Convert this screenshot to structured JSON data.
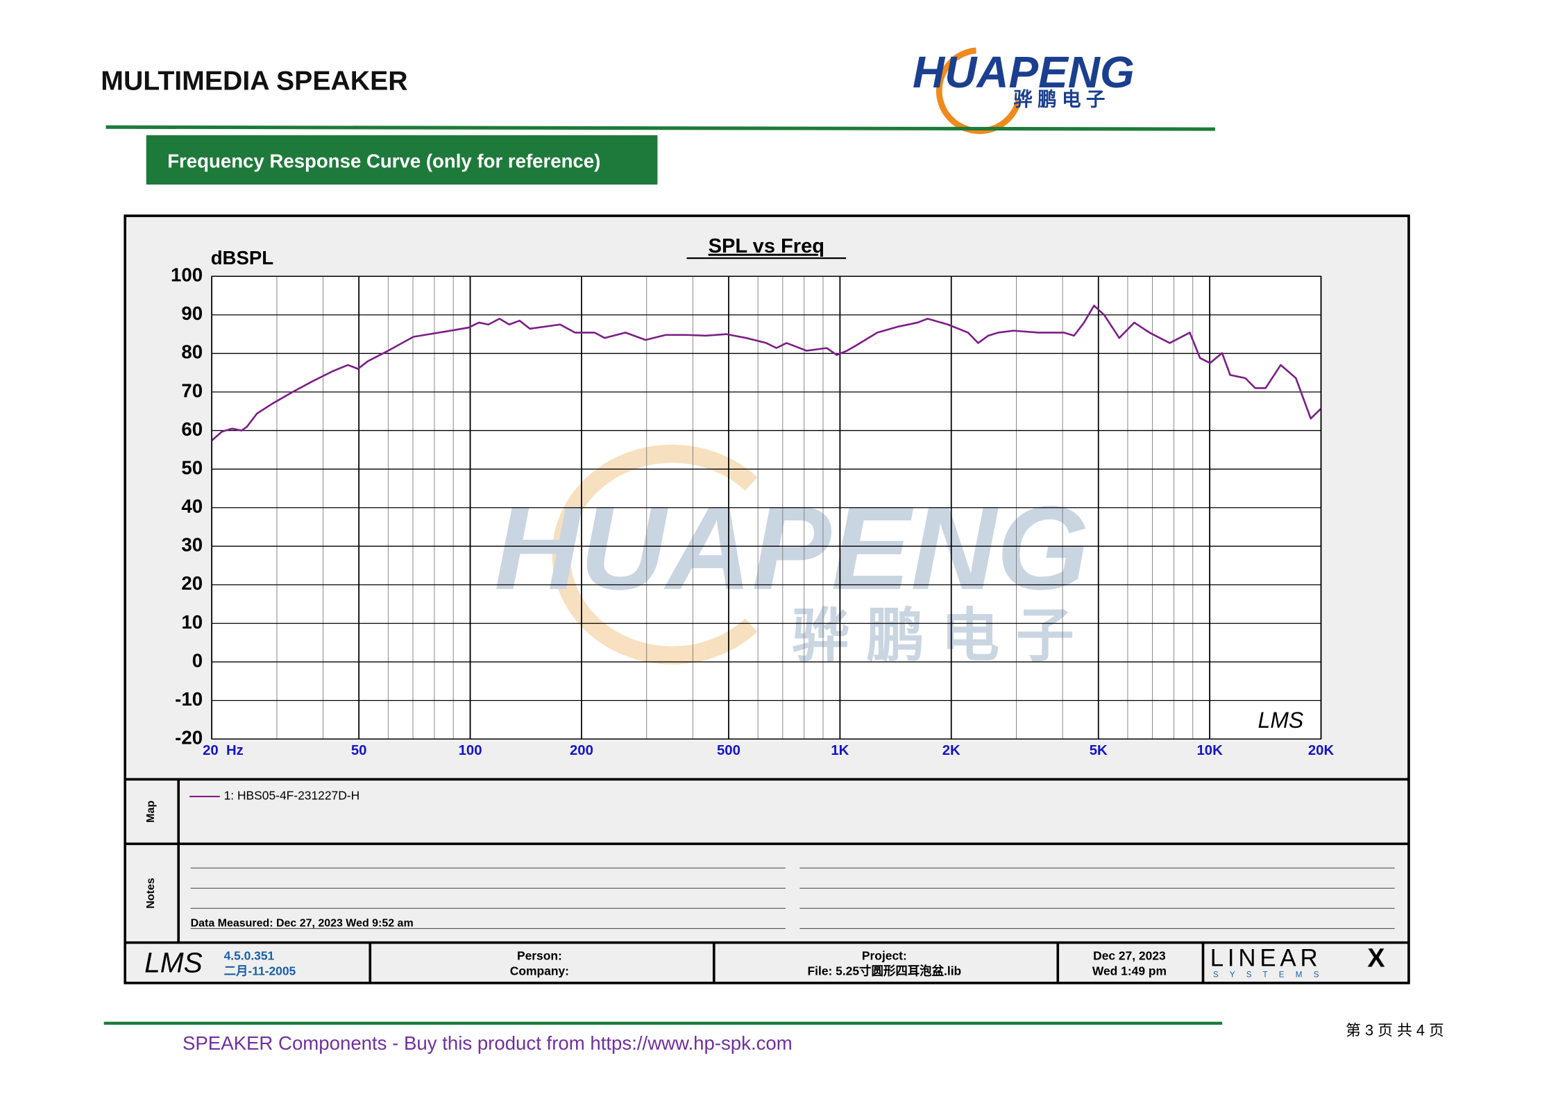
{
  "header": {
    "title": "MULTIMEDIA SPEAKER",
    "logo": "HUAPENG",
    "logo_cn": "骅鹏电子"
  },
  "section_label": "Frequency Response Curve (only for reference)",
  "chart_data": {
    "type": "line",
    "title": "SPL vs Freq",
    "y_label": "dBSPL",
    "watermark": "HUAPENG",
    "watermark_cn": "骅 鹏 电 子",
    "lms_mark": "LMS",
    "x": [
      20,
      21.3,
      22.7,
      24.1,
      24.9,
      26.5,
      29.2,
      33.1,
      37.5,
      42.5,
      46.7,
      49.7,
      52.9,
      60,
      70.2,
      84.8,
      99,
      105.6,
      112,
      120,
      127.5,
      136,
      145,
      175,
      192,
      217,
      231,
      263,
      298,
      338,
      383,
      434,
      492,
      558,
      632,
      673,
      717,
      812,
      921,
      980,
      1045,
      1112,
      1262,
      1430,
      1622,
      1726,
      1958,
      2220,
      2364,
      2518,
      2680,
      2944,
      3446,
      4030,
      4296,
      4572,
      4865,
      5180,
      5692,
      6252,
      6872,
      7796,
      8832,
      9416,
      10020,
      10800,
      11360,
      12480,
      13280,
      14160,
      15560,
      17100,
      18760,
      20000
    ],
    "series": [
      {
        "name": "1: HBS05-4F-231227D-H",
        "color": "#7b1f86",
        "values": [
          57.4,
          59.7,
          60.5,
          60,
          61,
          64.4,
          67,
          70,
          72.8,
          75.4,
          77,
          76,
          78,
          80.7,
          84.3,
          85.6,
          86.7,
          88,
          87.5,
          89,
          87.5,
          88.5,
          86.4,
          87.5,
          85.4,
          85.4,
          84,
          85.4,
          83.5,
          84.8,
          84.8,
          84.6,
          85,
          84,
          82.7,
          81.4,
          82.7,
          80.7,
          81.4,
          79.6,
          80.7,
          82.2,
          85.4,
          86.9,
          88,
          89,
          87.5,
          85.4,
          82.7,
          84.6,
          85.4,
          85.9,
          85.4,
          85.4,
          84.6,
          88,
          92.4,
          90,
          84,
          88,
          85.4,
          82.7,
          85.4,
          78.8,
          77.5,
          80.1,
          74.4,
          73.6,
          71,
          71,
          77,
          73.6,
          63.1,
          65.7
        ]
      }
    ],
    "xlim": [
      20,
      20000
    ],
    "x_log": true,
    "xticks": [
      {
        "value": 20,
        "label": "20  Hz"
      },
      50,
      100,
      200,
      500,
      {
        "value": 1000,
        "label": "1K"
      },
      {
        "value": 2000,
        "label": "2K"
      },
      {
        "value": 5000,
        "label": "5K"
      },
      {
        "value": 10000,
        "label": "10K"
      },
      {
        "value": 20000,
        "label": "20K"
      }
    ],
    "ylim": [
      -20,
      100
    ],
    "yticks": [
      -20,
      -10,
      0,
      10,
      20,
      30,
      40,
      50,
      60,
      70,
      80,
      90,
      100
    ],
    "grid": true
  },
  "panel": {
    "map_label": "Map",
    "notes_label": "Notes",
    "data_measured": "Data Measured: Dec 27, 2023  Wed  9:52 am",
    "lms": "LMS",
    "version": "4.5.0.351",
    "version_date": "二月-11-2005",
    "person": "Person:",
    "company": "Company:",
    "project": "Project:",
    "file": "File: 5.25寸圆形四耳泡盆.lib",
    "date": "Dec 27, 2023",
    "time": "Wed  1:49 pm",
    "linear": "LINEAR",
    "x": "X",
    "systems": "S  Y  S  T  E  M  S"
  },
  "footer": {
    "text": "SPEAKER Components - Buy this product from  https://www.hp-spk.com",
    "page": "第 3 页 共 4 页"
  }
}
